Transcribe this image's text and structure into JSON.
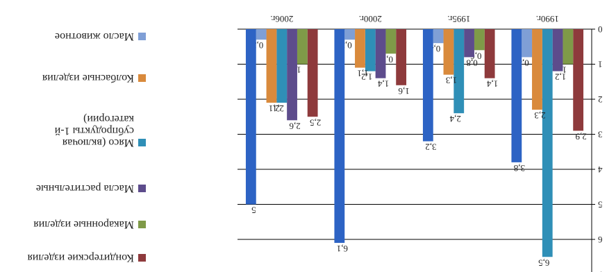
{
  "chart_data": {
    "type": "bar",
    "orientation": "vertical",
    "image_rotated_180": true,
    "categories": [
      "1990г.",
      "1995г.",
      "2000г.",
      "2006г."
    ],
    "ylim": [
      0,
      7
    ],
    "yticks": [
      0,
      1,
      2,
      3,
      4,
      5,
      6,
      7
    ],
    "grid": true,
    "legend_position": "right",
    "series": [
      {
        "name": "Кондитерские изделия",
        "color": "#8e3a3c",
        "values": [
          2.9,
          1.4,
          1.6,
          2.5
        ],
        "labels": [
          "2,9",
          "1,4",
          "1,6",
          "2,5"
        ]
      },
      {
        "name": "Макаронные изделия",
        "color": "#7f9a48",
        "values": [
          1.0,
          0.6,
          0.7,
          1.0
        ],
        "labels": [
          "1",
          "0,6",
          "0,7",
          "1"
        ]
      },
      {
        "name": "Масла растительные",
        "color": "#5d4c8c",
        "values": [
          1.2,
          0.8,
          1.4,
          2.6
        ],
        "labels": [
          "1,2",
          "0,8",
          "1,4",
          "2,6"
        ]
      },
      {
        "name": "Мясо (включая субпродукты 1-й категории)",
        "color": "#2f8fb7",
        "values": [
          6.5,
          2.4,
          1.2,
          2.1
        ],
        "labels": [
          "6,5",
          "2,4",
          "1,2",
          "2,1"
        ]
      },
      {
        "name": "Колбасные изделия",
        "color": "#d98a3c",
        "values": [
          2.3,
          1.3,
          1.1,
          2.1
        ],
        "labels": [
          "2,3",
          "1,3",
          "1,1",
          "2,1"
        ]
      },
      {
        "name": "Масло животное",
        "color": "#7f9fd6",
        "values": [
          0.8,
          0.4,
          0.3,
          0.3
        ],
        "labels": [
          "0,8",
          "0,4",
          "0,3",
          "0,3"
        ]
      },
      {
        "name": "",
        "color": "#2d63c4",
        "values": [
          3.8,
          3.2,
          6.1,
          5.0
        ],
        "labels": [
          "3,8",
          "3,2",
          "6,1",
          "5"
        ]
      }
    ]
  }
}
